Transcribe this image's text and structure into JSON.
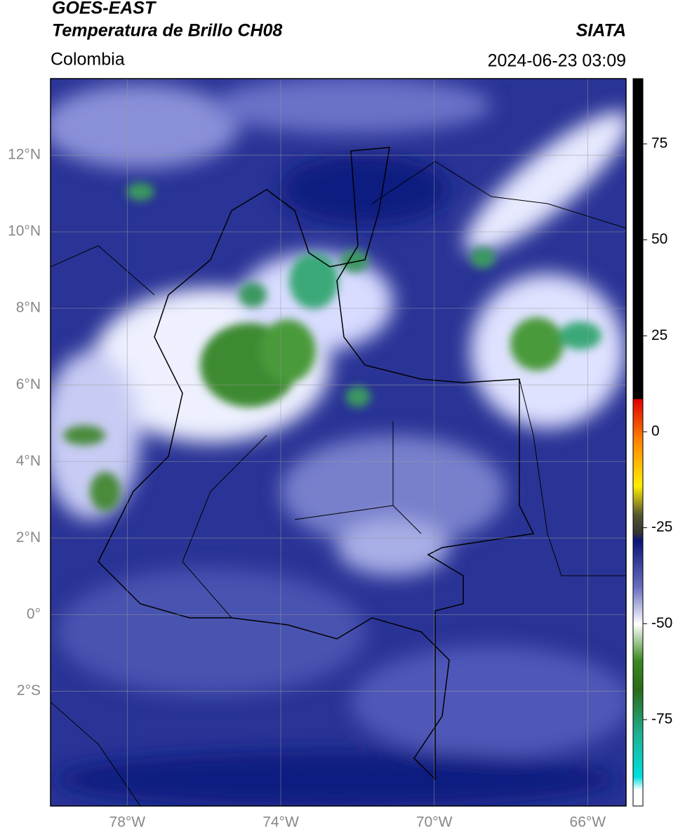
{
  "header": {
    "line1": "GOES-EAST",
    "line2": "Temperatura de Brillo CH08",
    "region": "Colombia",
    "source": "SIATA",
    "datetime": "2024-06-23 03:09"
  },
  "map": {
    "xlim": [
      -80,
      -65
    ],
    "ylim": [
      -5,
      14
    ],
    "xticks": [
      {
        "value": -78,
        "label": "78°W"
      },
      {
        "value": -74,
        "label": "74°W"
      },
      {
        "value": -70,
        "label": "70°W"
      },
      {
        "value": -66,
        "label": "66°W"
      }
    ],
    "yticks": [
      {
        "value": 12,
        "label": "12°N"
      },
      {
        "value": 10,
        "label": "10°N"
      },
      {
        "value": 8,
        "label": "8°N"
      },
      {
        "value": 6,
        "label": "6°N"
      },
      {
        "value": 4,
        "label": "4°N"
      },
      {
        "value": 2,
        "label": "2°N"
      },
      {
        "value": 0,
        "label": "0°"
      },
      {
        "value": -2,
        "label": "2°S"
      }
    ],
    "grid": true
  },
  "colorbar": {
    "lim": [
      -97.5,
      92
    ],
    "ticks": [
      75,
      50,
      25,
      0,
      -25,
      -50,
      -75
    ]
  }
}
